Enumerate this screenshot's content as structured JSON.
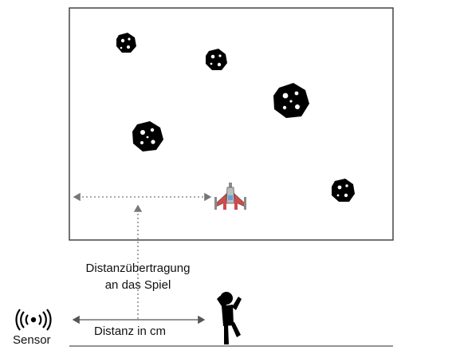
{
  "labels": {
    "transfer_line1": "Distanzübertragung",
    "transfer_line2": "an das Spiel",
    "distance": "Distanz in cm",
    "sensor": "Sensor"
  },
  "colors": {
    "ink": "#111111",
    "frame": "#444444",
    "dotted_arrow": "#777777",
    "ship_red": "#d24a4a",
    "ship_gray": "#8a8a8a"
  },
  "icons": {
    "sensor": "wireless-sensor-icon",
    "person": "stick-figure-icon",
    "spaceship": "spaceship-icon",
    "asteroid": "asteroid-icon"
  }
}
